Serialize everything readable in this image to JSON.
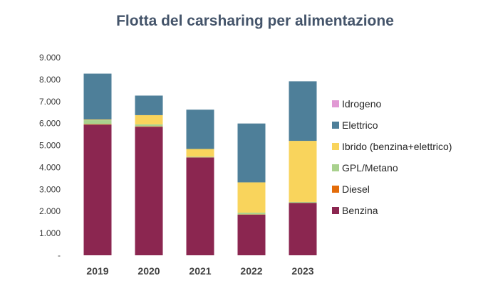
{
  "chart_data": {
    "type": "bar",
    "stacked": true,
    "title": "Flotta del carsharing per alimentazione",
    "xlabel": "",
    "ylabel": "",
    "categories": [
      "2019",
      "2020",
      "2021",
      "2022",
      "2023"
    ],
    "ylim": [
      0,
      9000
    ],
    "yticks": [
      0,
      1000,
      2000,
      3000,
      4000,
      5000,
      6000,
      7000,
      8000,
      9000
    ],
    "ytick_labels": [
      "-",
      "1.000",
      "2.000",
      "3.000",
      "4.000",
      "5.000",
      "6.000",
      "7.000",
      "8.000",
      "9.000"
    ],
    "grid": false,
    "legend_position": "right",
    "series": [
      {
        "name": "Benzina",
        "color": "#8b2650",
        "values": [
          5950,
          5850,
          4450,
          1850,
          2380
        ]
      },
      {
        "name": "Diesel",
        "color": "#e36c0a",
        "values": [
          20,
          20,
          10,
          10,
          10
        ]
      },
      {
        "name": "GPL/Metano",
        "color": "#a9d18e",
        "values": [
          180,
          90,
          30,
          80,
          40
        ]
      },
      {
        "name": "Ibrido (benzina+elettrico)",
        "color": "#f9d45c",
        "values": [
          30,
          420,
          350,
          1380,
          2780
        ]
      },
      {
        "name": "Elettrico",
        "color": "#4e7f99",
        "values": [
          2090,
          890,
          1790,
          2680,
          2710
        ]
      },
      {
        "name": "Idrogeno",
        "color": "#e199d4",
        "values": [
          0,
          0,
          0,
          0,
          0
        ]
      }
    ]
  }
}
